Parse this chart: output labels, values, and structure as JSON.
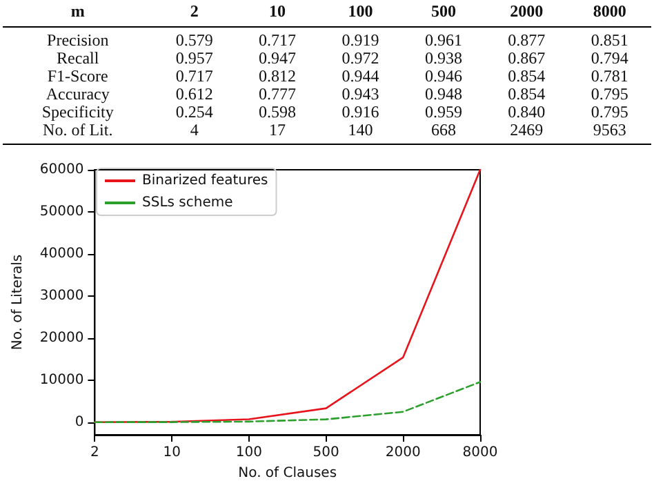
{
  "chart_data": [
    {
      "type": "other",
      "xlabel": "m",
      "categories": [
        "2",
        "10",
        "100",
        "500",
        "2000",
        "8000"
      ],
      "series": [
        {
          "name": "Precision",
          "values": [
            0.579,
            0.717,
            0.919,
            0.961,
            0.877,
            0.851
          ],
          "value_labels": [
            "0.579",
            "0.717",
            "0.919",
            "0.961",
            "0.877",
            "0.851"
          ]
        },
        {
          "name": "Recall",
          "values": [
            0.957,
            0.947,
            0.972,
            0.938,
            0.867,
            0.794
          ],
          "value_labels": [
            "0.957",
            "0.947",
            "0.972",
            "0.938",
            "0.867",
            "0.794"
          ]
        },
        {
          "name": "F1-Score",
          "values": [
            0.717,
            0.812,
            0.944,
            0.946,
            0.854,
            0.781
          ],
          "value_labels": [
            "0.717",
            "0.812",
            "0.944",
            "0.946",
            "0.854",
            "0.781"
          ]
        },
        {
          "name": "Accuracy",
          "values": [
            0.612,
            0.777,
            0.943,
            0.948,
            0.854,
            0.795
          ],
          "value_labels": [
            "0.612",
            "0.777",
            "0.943",
            "0.948",
            "0.854",
            "0.795"
          ]
        },
        {
          "name": "Specificity",
          "values": [
            0.254,
            0.598,
            0.916,
            0.959,
            0.84,
            0.795
          ],
          "value_labels": [
            "0.254",
            "0.598",
            "0.916",
            "0.959",
            "0.840",
            "0.795"
          ]
        },
        {
          "name": "No. of Lit.",
          "values": [
            4,
            17,
            140,
            668,
            2469,
            9563
          ],
          "value_labels": [
            "4",
            "17",
            "140",
            "668",
            "2469",
            "9563"
          ]
        }
      ]
    },
    {
      "type": "line",
      "xlabel": "No. of Clauses",
      "ylabel": "No. of Literals",
      "categories": [
        "2",
        "10",
        "100",
        "500",
        "2000",
        "8000"
      ],
      "ylim": [
        -3000,
        60000
      ],
      "yticks": [
        0,
        10000,
        20000,
        30000,
        40000,
        50000,
        60000
      ],
      "legend": "top left",
      "grid": false,
      "marker": "none",
      "series": [
        {
          "name": "Binarized features",
          "color": "#e8141c",
          "line_style": "solid",
          "values": [
            0,
            100,
            700,
            3300,
            15400,
            60000
          ]
        },
        {
          "name": "SSLs scheme",
          "color": "#2ca02c",
          "line_style": "dashed",
          "values": [
            4,
            17,
            140,
            668,
            2469,
            9563
          ]
        }
      ]
    }
  ]
}
